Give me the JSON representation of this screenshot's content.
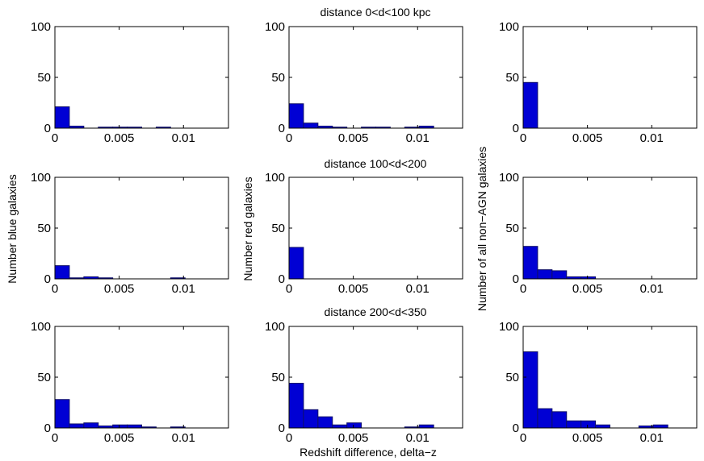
{
  "figure": {
    "row_titles": [
      "distance 0<d<100 kpc",
      "distance 100<d<200",
      "distance 200<d<350"
    ],
    "ylabels": [
      "Number blue galaxies",
      "Number red galaxies",
      "Number of all non−AGN galaxies"
    ],
    "xlabel": "Redshift difference, delta−z"
  },
  "chart_data": [
    {
      "type": "bar",
      "row": 0,
      "col": 0,
      "title": "",
      "bin_width": 0.001125,
      "bin_starts": [
        0,
        0.001125,
        0.00225,
        0.003375,
        0.0045,
        0.005625,
        0.00675,
        0.007875,
        0.009,
        0.010125,
        0.01125,
        0.012375
      ],
      "values": [
        21,
        2,
        0,
        1,
        1,
        1,
        0,
        1,
        0,
        0,
        0,
        0
      ],
      "xlim": [
        0,
        0.0135
      ],
      "ylim": [
        0,
        100
      ],
      "xticks": [
        0,
        0.005,
        0.01
      ],
      "xtick_labels": [
        "0",
        "0.005",
        "0.01"
      ],
      "yticks": [
        0,
        50,
        100
      ],
      "ytick_labels": [
        "0",
        "50",
        "100"
      ]
    },
    {
      "type": "bar",
      "row": 0,
      "col": 1,
      "title": "distance 0<d<100 kpc",
      "bin_width": 0.001125,
      "bin_starts": [
        0,
        0.001125,
        0.00225,
        0.003375,
        0.0045,
        0.005625,
        0.00675,
        0.007875,
        0.009,
        0.010125,
        0.01125,
        0.012375
      ],
      "values": [
        24,
        5,
        2,
        1,
        0,
        1,
        1,
        0,
        1,
        2,
        0,
        0
      ],
      "xlim": [
        0,
        0.0135
      ],
      "ylim": [
        0,
        100
      ],
      "xticks": [
        0,
        0.005,
        0.01
      ],
      "xtick_labels": [
        "0",
        "0.005",
        "0.01"
      ],
      "yticks": [
        0,
        50,
        100
      ],
      "ytick_labels": [
        "0",
        "50",
        "100"
      ]
    },
    {
      "type": "bar",
      "row": 0,
      "col": 2,
      "title": "",
      "bin_width": 0.001125,
      "bin_starts": [
        0,
        0.001125,
        0.00225,
        0.003375,
        0.0045,
        0.005625,
        0.00675,
        0.007875,
        0.009,
        0.010125,
        0.01125,
        0.012375
      ],
      "values": [
        45,
        0,
        0,
        0,
        0,
        0,
        0,
        0,
        0,
        0,
        0,
        0
      ],
      "xlim": [
        0,
        0.0135
      ],
      "ylim": [
        0,
        100
      ],
      "xticks": [
        0,
        0.005,
        0.01
      ],
      "xtick_labels": [
        "0",
        "0.005",
        "0.01"
      ],
      "yticks": [
        0,
        50,
        100
      ],
      "ytick_labels": [
        "0",
        "50",
        "100"
      ]
    },
    {
      "type": "bar",
      "row": 1,
      "col": 0,
      "title": "",
      "bin_width": 0.001125,
      "bin_starts": [
        0,
        0.001125,
        0.00225,
        0.003375,
        0.0045,
        0.005625,
        0.00675,
        0.007875,
        0.009,
        0.010125,
        0.01125,
        0.012375
      ],
      "values": [
        13,
        1,
        2,
        1,
        0,
        0,
        0,
        0,
        1,
        0,
        0,
        0
      ],
      "xlim": [
        0,
        0.0135
      ],
      "ylim": [
        0,
        100
      ],
      "xticks": [
        0,
        0.005,
        0.01
      ],
      "xtick_labels": [
        "0",
        "0.005",
        "0.01"
      ],
      "yticks": [
        0,
        50,
        100
      ],
      "ytick_labels": [
        "0",
        "50",
        "100"
      ]
    },
    {
      "type": "bar",
      "row": 1,
      "col": 1,
      "title": "distance 100<d<200",
      "bin_width": 0.001125,
      "bin_starts": [
        0,
        0.001125,
        0.00225,
        0.003375,
        0.0045,
        0.005625,
        0.00675,
        0.007875,
        0.009,
        0.010125,
        0.01125,
        0.012375
      ],
      "values": [
        31,
        0,
        0,
        0,
        0,
        0,
        0,
        0,
        0,
        0,
        0,
        0
      ],
      "xlim": [
        0,
        0.0135
      ],
      "ylim": [
        0,
        100
      ],
      "xticks": [
        0,
        0.005,
        0.01
      ],
      "xtick_labels": [
        "0",
        "0.005",
        "0.01"
      ],
      "yticks": [
        0,
        50,
        100
      ],
      "ytick_labels": [
        "0",
        "50",
        "100"
      ]
    },
    {
      "type": "bar",
      "row": 1,
      "col": 2,
      "title": "",
      "bin_width": 0.001125,
      "bin_starts": [
        0,
        0.001125,
        0.00225,
        0.003375,
        0.0045,
        0.005625,
        0.00675,
        0.007875,
        0.009,
        0.010125,
        0.01125,
        0.012375
      ],
      "values": [
        32,
        9,
        8,
        2,
        2,
        0,
        0,
        0,
        0,
        0,
        0,
        0
      ],
      "xlim": [
        0,
        0.0135
      ],
      "ylim": [
        0,
        100
      ],
      "xticks": [
        0,
        0.005,
        0.01
      ],
      "xtick_labels": [
        "0",
        "0.005",
        "0.01"
      ],
      "yticks": [
        0,
        50,
        100
      ],
      "ytick_labels": [
        "0",
        "50",
        "100"
      ]
    },
    {
      "type": "bar",
      "row": 2,
      "col": 0,
      "title": "",
      "bin_width": 0.001125,
      "bin_starts": [
        0,
        0.001125,
        0.00225,
        0.003375,
        0.0045,
        0.005625,
        0.00675,
        0.007875,
        0.009,
        0.010125,
        0.01125,
        0.012375
      ],
      "values": [
        28,
        4,
        5,
        2,
        3,
        3,
        1,
        0,
        1,
        0,
        0,
        0
      ],
      "xlim": [
        0,
        0.0135
      ],
      "ylim": [
        0,
        100
      ],
      "xticks": [
        0,
        0.005,
        0.01
      ],
      "xtick_labels": [
        "0",
        "0.005",
        "0.01"
      ],
      "yticks": [
        0,
        50,
        100
      ],
      "ytick_labels": [
        "0",
        "50",
        "100"
      ]
    },
    {
      "type": "bar",
      "row": 2,
      "col": 1,
      "title": "distance 200<d<350",
      "bin_width": 0.001125,
      "bin_starts": [
        0,
        0.001125,
        0.00225,
        0.003375,
        0.0045,
        0.005625,
        0.00675,
        0.007875,
        0.009,
        0.010125,
        0.01125,
        0.012375
      ],
      "values": [
        44,
        18,
        11,
        3,
        5,
        0,
        0,
        0,
        1,
        3,
        0,
        0
      ],
      "xlim": [
        0,
        0.0135
      ],
      "ylim": [
        0,
        100
      ],
      "xticks": [
        0,
        0.005,
        0.01
      ],
      "xtick_labels": [
        "0",
        "0.005",
        "0.01"
      ],
      "yticks": [
        0,
        50,
        100
      ],
      "ytick_labels": [
        "0",
        "50",
        "100"
      ]
    },
    {
      "type": "bar",
      "row": 2,
      "col": 2,
      "title": "",
      "bin_width": 0.001125,
      "bin_starts": [
        0,
        0.001125,
        0.00225,
        0.003375,
        0.0045,
        0.005625,
        0.00675,
        0.007875,
        0.009,
        0.010125,
        0.01125,
        0.012375
      ],
      "values": [
        75,
        19,
        16,
        7,
        7,
        3,
        0,
        0,
        2,
        3,
        0,
        0
      ],
      "xlim": [
        0,
        0.0135
      ],
      "ylim": [
        0,
        100
      ],
      "xticks": [
        0,
        0.005,
        0.01
      ],
      "xtick_labels": [
        "0",
        "0.005",
        "0.01"
      ],
      "yticks": [
        0,
        50,
        100
      ],
      "ytick_labels": [
        "0",
        "50",
        "100"
      ]
    }
  ],
  "colors": {
    "bar_fill": "#0000d4",
    "bar_edge": "#10106a",
    "axes": "#000000",
    "background": "#ffffff"
  }
}
